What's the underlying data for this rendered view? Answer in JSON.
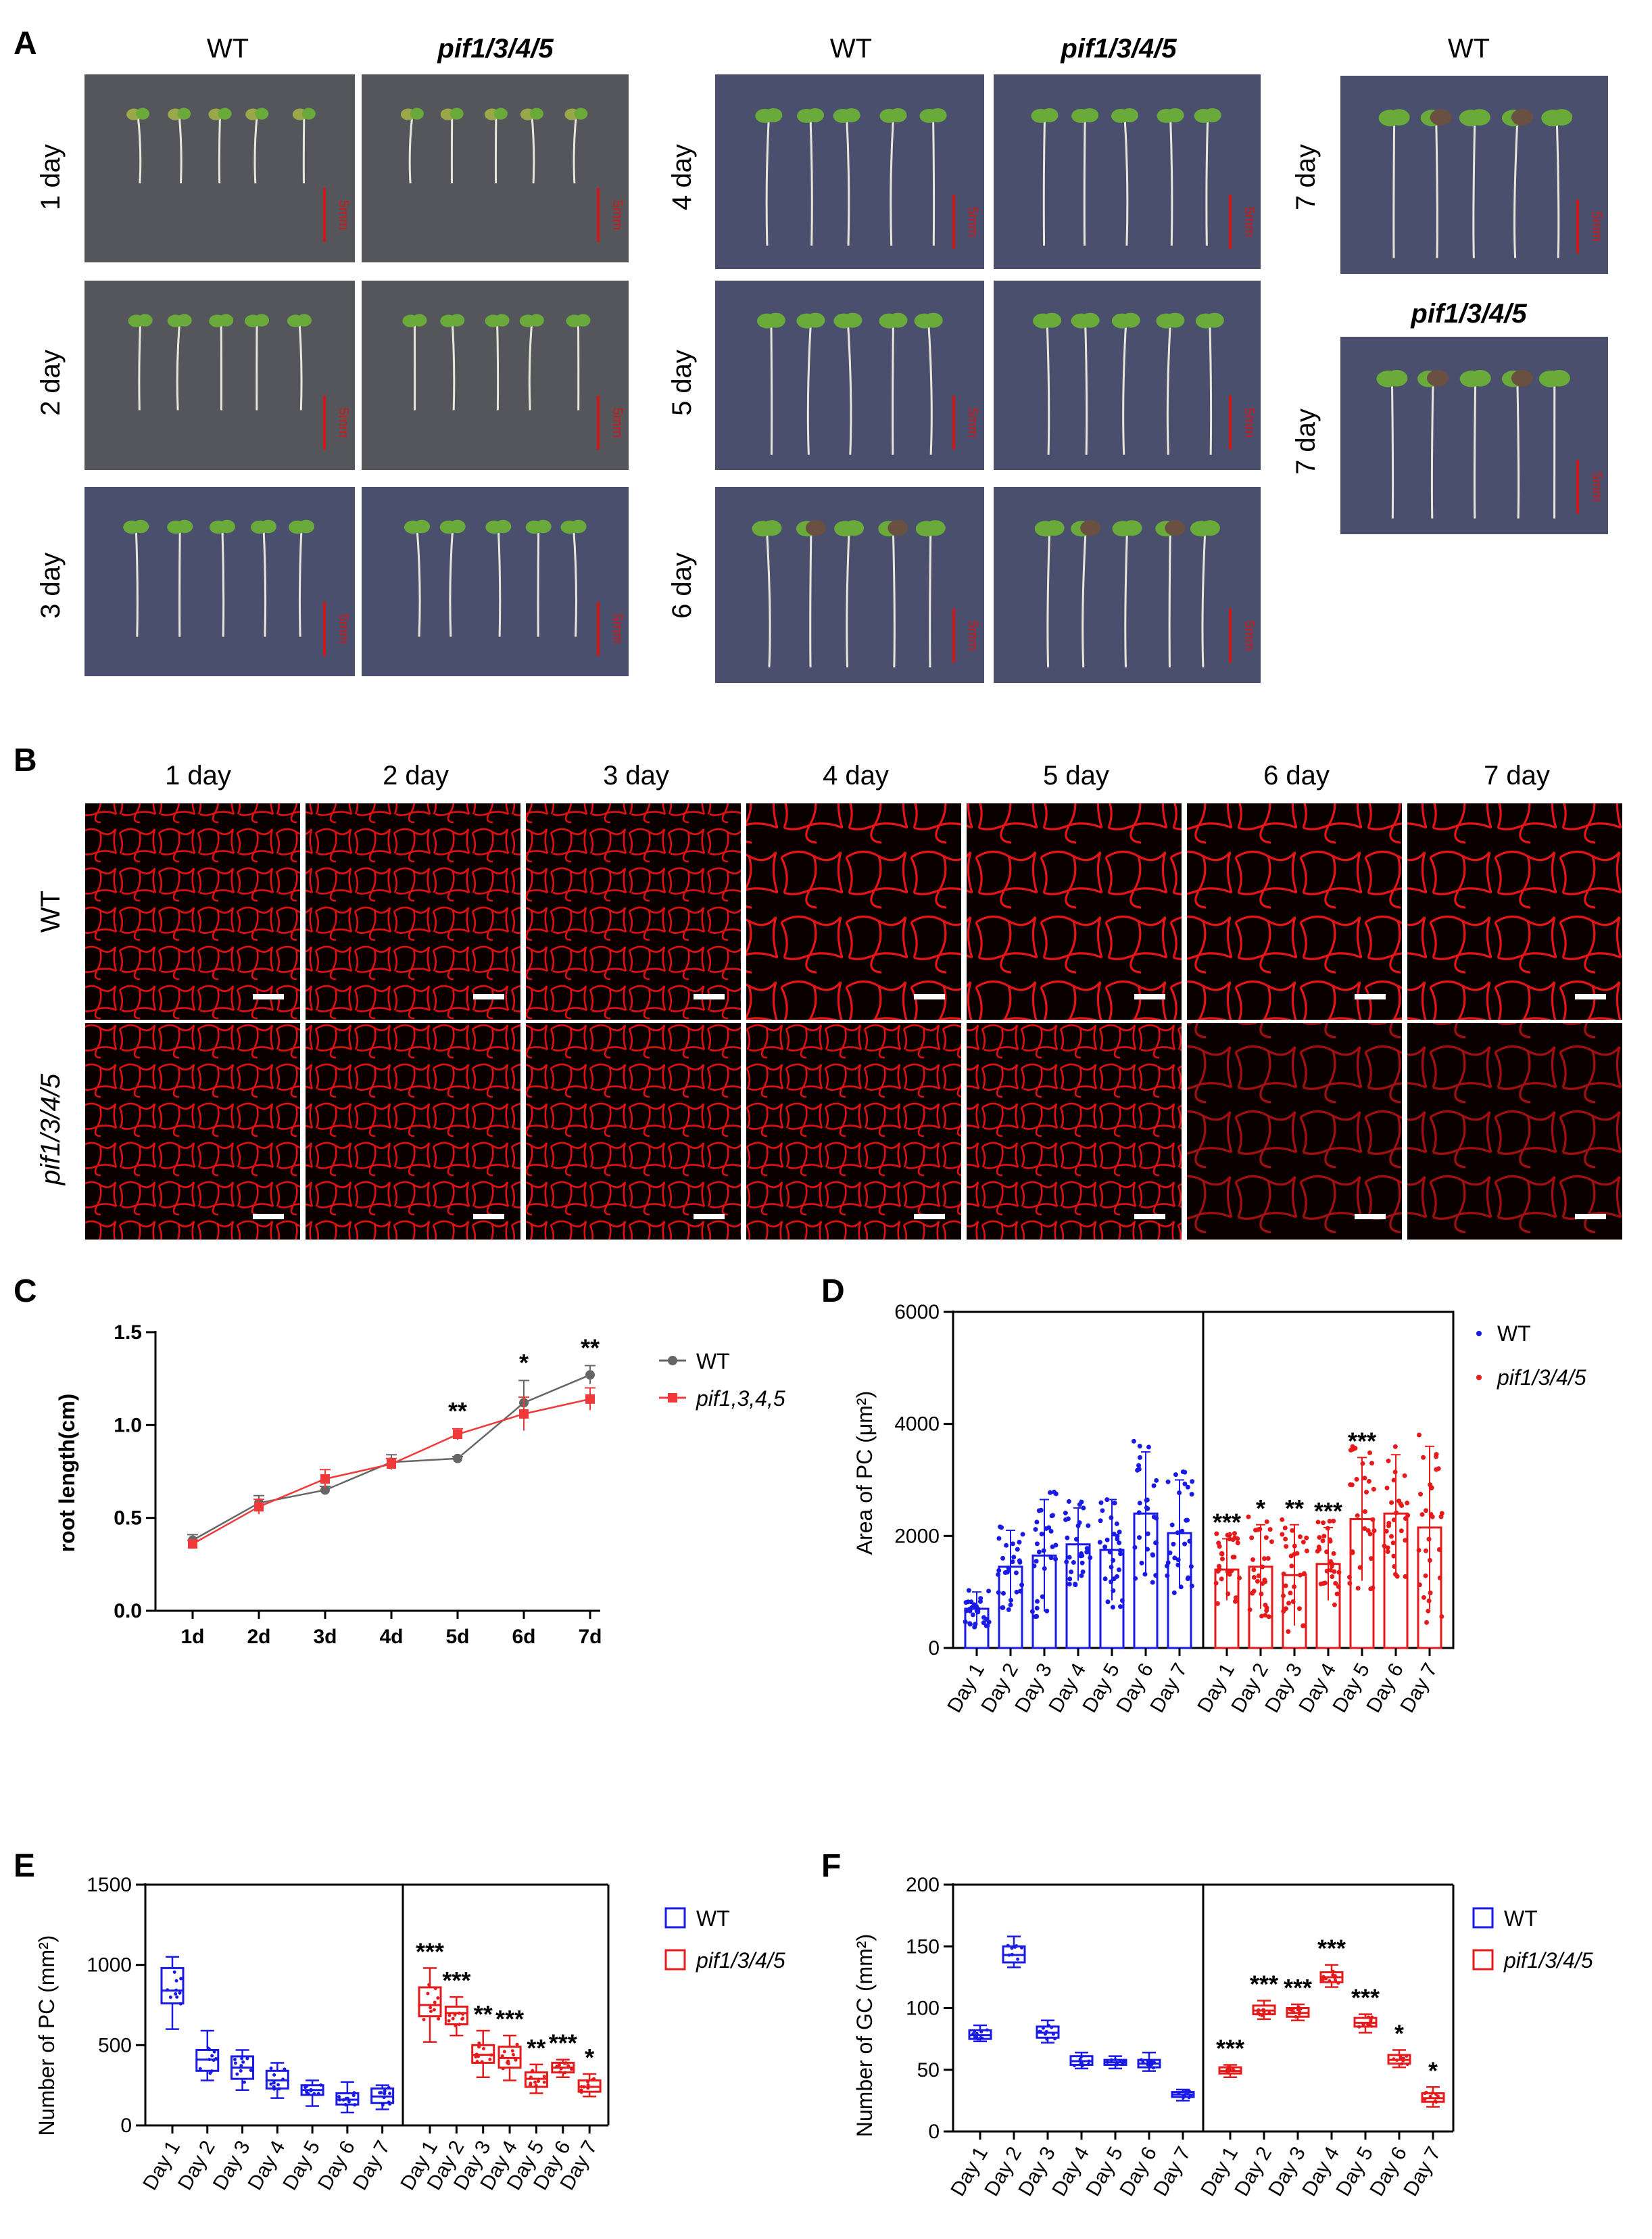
{
  "panel_labels": {
    "a": "A",
    "b": "B",
    "c": "C",
    "d": "D",
    "e": "E",
    "f": "F"
  },
  "panel_a": {
    "wt": "WT",
    "mut": "pif1/3/4/5",
    "days": [
      "1 day",
      "2 day",
      "3 day",
      "4 day",
      "5 day",
      "6 day",
      "7 day"
    ],
    "scale_text": "5mm",
    "colors": {
      "plate": "#4a4f6e",
      "plate_dark": "#54565c",
      "seedling": "#e8e6d8",
      "cotyledon": "#6aaa3a",
      "scale": "#d01818"
    }
  },
  "panel_b": {
    "days": [
      "1 day",
      "2 day",
      "3 day",
      "4 day",
      "5 day",
      "6 day",
      "7 day"
    ],
    "rows": [
      "WT",
      "pif1/3/4/5"
    ],
    "colors": {
      "bg": "#0a0000",
      "cell_wall": "#e01010"
    }
  },
  "chart_data": [
    {
      "panel": "C",
      "type": "line",
      "ylabel": "root length(cm)",
      "categories": [
        "1d",
        "2d",
        "3d",
        "4d",
        "5d",
        "6d",
        "7d"
      ],
      "ylim": [
        0.0,
        1.5
      ],
      "yticks": [
        "0.0",
        "0.5",
        "1.0",
        "1.5"
      ],
      "series": [
        {
          "name": "WT",
          "color": "#666666",
          "values": [
            0.38,
            0.58,
            0.65,
            0.8,
            0.82,
            1.12,
            1.27
          ],
          "errors": [
            0.03,
            0.04,
            0.02,
            0.04,
            0.01,
            0.12,
            0.05
          ]
        },
        {
          "name": "pif1,3,4,5",
          "color": "#f03a3a",
          "values": [
            0.36,
            0.56,
            0.71,
            0.79,
            0.95,
            1.06,
            1.14
          ],
          "errors": [
            0.02,
            0.04,
            0.05,
            0.03,
            0.03,
            0.09,
            0.06
          ]
        }
      ],
      "annotations": [
        {
          "category": "5d",
          "text": "**"
        },
        {
          "category": "6d",
          "text": "*"
        },
        {
          "category": "7d",
          "text": "**"
        }
      ]
    },
    {
      "panel": "D",
      "type": "bar",
      "ylabel": "Area of PC (μm²)",
      "categories": [
        "Day 1",
        "Day 2",
        "Day 3",
        "Day 4",
        "Day 5",
        "Day 6",
        "Day 7"
      ],
      "ylim": [
        0,
        6000
      ],
      "yticks": [
        "0",
        "2000",
        "4000",
        "6000"
      ],
      "series": [
        {
          "name": "WT",
          "color": "#1a1ae6",
          "values": [
            700,
            1450,
            1650,
            1850,
            1750,
            2400,
            2050
          ],
          "errors": [
            300,
            650,
            1000,
            650,
            900,
            1100,
            950
          ]
        },
        {
          "name": "pif1/3/4/5",
          "color": "#e61a1a",
          "values": [
            1400,
            1450,
            1300,
            1500,
            2300,
            2400,
            2150
          ],
          "errors": [
            550,
            750,
            900,
            650,
            1100,
            1050,
            1450
          ]
        }
      ],
      "annotations": [
        "***",
        "*",
        "**",
        "***",
        "***",
        "",
        ""
      ]
    },
    {
      "panel": "E",
      "type": "box",
      "ylabel": "Number of PC (mm²)",
      "categories": [
        "Day 1",
        "Day 2",
        "Day 3",
        "Day 4",
        "Day 5",
        "Day 6",
        "Day 7"
      ],
      "ylim": [
        0,
        1500
      ],
      "yticks": [
        "0",
        "500",
        "1000",
        "1500"
      ],
      "series": [
        {
          "name": "WT",
          "color": "#1a1ae6",
          "boxes": [
            [
              600,
              760,
              840,
              980,
              1050
            ],
            [
              280,
              340,
              410,
              470,
              590
            ],
            [
              220,
              290,
              360,
              430,
              470
            ],
            [
              170,
              230,
              280,
              340,
              390
            ],
            [
              120,
              190,
              220,
              250,
              280
            ],
            [
              80,
              130,
              160,
              200,
              270
            ],
            [
              100,
              140,
              180,
              230,
              250
            ]
          ]
        },
        {
          "name": "pif1/3/4/5",
          "color": "#e61a1a",
          "boxes": [
            [
              520,
              680,
              750,
              860,
              980
            ],
            [
              560,
              630,
              700,
              740,
              800
            ],
            [
              300,
              390,
              440,
              500,
              590
            ],
            [
              280,
              360,
              420,
              490,
              560
            ],
            [
              200,
              240,
              290,
              330,
              380
            ],
            [
              300,
              330,
              360,
              390,
              410
            ],
            [
              180,
              210,
              240,
              280,
              320
            ]
          ]
        }
      ],
      "annotations": [
        "***",
        "***",
        "**",
        "***",
        "**",
        "***",
        "*"
      ]
    },
    {
      "panel": "F",
      "type": "box",
      "ylabel": "Number of GC (mm²)",
      "categories": [
        "Day 1",
        "Day 2",
        "Day 3",
        "Day 4",
        "Day 5",
        "Day 6",
        "Day 7"
      ],
      "ylim": [
        0,
        200
      ],
      "yticks": [
        "0",
        "50",
        "100",
        "150",
        "200"
      ],
      "series": [
        {
          "name": "WT",
          "color": "#1a1ae6",
          "boxes": [
            [
              73,
              75,
              78,
              82,
              86
            ],
            [
              133,
              137,
              143,
              150,
              158
            ],
            [
              72,
              76,
              80,
              85,
              90
            ],
            [
              51,
              54,
              57,
              61,
              64
            ],
            [
              51,
              54,
              56,
              58,
              61
            ],
            [
              49,
              52,
              55,
              58,
              64
            ],
            [
              25,
              28,
              30,
              32,
              34
            ]
          ]
        },
        {
          "name": "pif1/3/4/5",
          "color": "#e61a1a",
          "boxes": [
            [
              44,
              47,
              49,
              52,
              54
            ],
            [
              91,
              95,
              98,
              102,
              106
            ],
            [
              90,
              93,
              96,
              100,
              103
            ],
            [
              117,
              121,
              125,
              129,
              135
            ],
            [
              80,
              85,
              88,
              92,
              95
            ],
            [
              52,
              55,
              58,
              62,
              66
            ],
            [
              20,
              24,
              27,
              31,
              36
            ]
          ]
        }
      ],
      "annotations": [
        "***",
        "***",
        "***",
        "***",
        "***",
        "*",
        "*"
      ]
    }
  ]
}
